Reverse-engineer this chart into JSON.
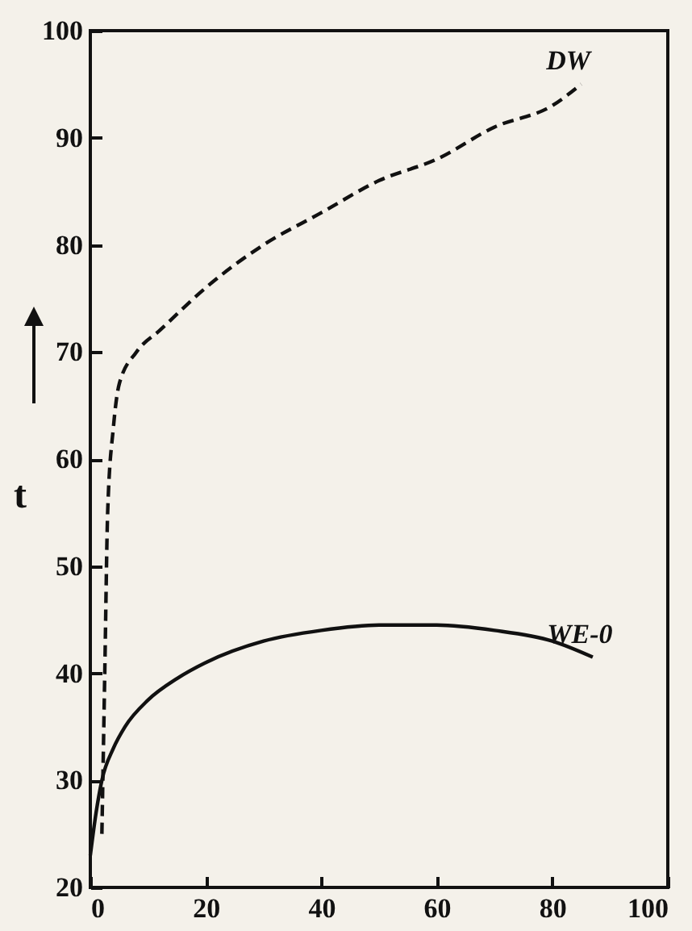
{
  "chart_data": {
    "type": "line",
    "ylabel": "t",
    "xlim": [
      0,
      100
    ],
    "ylim": [
      20,
      100
    ],
    "xticks": [
      0,
      20,
      40,
      60,
      80,
      100
    ],
    "yticks": [
      20,
      30,
      40,
      50,
      60,
      70,
      80,
      90,
      100
    ],
    "grid": false,
    "legend": false,
    "series": [
      {
        "name": "DW",
        "color": "#111111",
        "line_style": "dashed",
        "x": [
          2,
          2.5,
          3,
          4,
          5,
          8,
          12,
          20,
          30,
          40,
          50,
          60,
          70,
          80,
          85
        ],
        "values": [
          25,
          40,
          55,
          63,
          67,
          70,
          72,
          76,
          80,
          83,
          86,
          88,
          91,
          93,
          95
        ]
      },
      {
        "name": "WE-0",
        "color": "#111111",
        "line_style": "solid",
        "x": [
          0,
          1,
          2,
          4,
          6,
          10,
          15,
          20,
          30,
          40,
          50,
          60,
          70,
          80,
          87
        ],
        "values": [
          23,
          27,
          30,
          33,
          35,
          37.5,
          39.5,
          41,
          43,
          44,
          44.5,
          44.5,
          44,
          43,
          41.5
        ]
      }
    ]
  }
}
